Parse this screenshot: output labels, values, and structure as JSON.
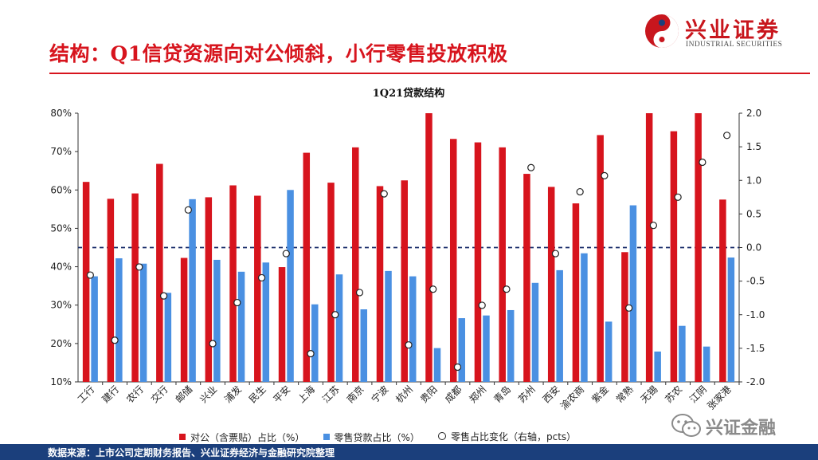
{
  "page": {
    "title": "结构：Q1信贷资源向对公倾斜，小行零售投放积极",
    "logo": {
      "cn": "兴业证券",
      "en": "INDUSTRIAL SECURITIES"
    },
    "source": "数据来源：上市公司定期财务报告、兴业证券经济与金融研究院整理",
    "watermark": "兴证金融",
    "colors": {
      "accent_red": "#d7141d",
      "footer_blue": "#1b3f7c"
    }
  },
  "chart_data": {
    "type": "bar",
    "title": "1Q21贷款结构",
    "categories": [
      "工行",
      "建行",
      "农行",
      "交行",
      "邮储",
      "兴业",
      "浦发",
      "民生",
      "平安",
      "上海",
      "江苏",
      "南京",
      "宁波",
      "杭州",
      "贵阳",
      "成都",
      "郑州",
      "青岛",
      "苏州",
      "西安",
      "渝农商",
      "紫金",
      "常熟",
      "无锡",
      "苏农",
      "江阴",
      "张家港"
    ],
    "series": [
      {
        "name": "对公（含票贴）占比（%）",
        "axis": "left",
        "color": "#d7141d",
        "values": [
          62.1,
          57.7,
          59.1,
          66.8,
          42.3,
          58.1,
          61.2,
          58.5,
          39.9,
          69.7,
          61.9,
          71.1,
          61.0,
          62.5,
          80.0,
          73.3,
          72.4,
          71.1,
          64.2,
          60.8,
          56.5,
          74.3,
          43.8,
          80.0,
          75.3,
          80.0,
          57.5
        ]
      },
      {
        "name": "零售贷款占比（%）",
        "axis": "left",
        "color": "#4a90e2",
        "values": [
          37.5,
          42.2,
          40.8,
          33.2,
          57.6,
          41.8,
          38.7,
          41.1,
          60.0,
          30.2,
          38.0,
          28.9,
          38.9,
          37.5,
          18.8,
          26.6,
          27.3,
          28.7,
          35.8,
          39.1,
          43.5,
          25.7,
          56.0,
          17.9,
          24.6,
          19.2,
          42.4
        ]
      },
      {
        "name": "零售占比变化（右轴，pcts）",
        "axis": "right",
        "type": "scatter",
        "color": "#222222",
        "values": [
          -0.41,
          -1.38,
          -0.29,
          -0.72,
          0.56,
          -1.43,
          -0.82,
          -0.45,
          -0.09,
          -1.58,
          -1.0,
          -0.67,
          0.8,
          -1.45,
          -0.62,
          -1.78,
          -0.86,
          -0.62,
          1.19,
          -0.09,
          0.83,
          1.07,
          -0.9,
          0.33,
          0.75,
          1.27,
          1.67
        ]
      }
    ],
    "y_left": {
      "min": 10,
      "max": 80,
      "step": 10,
      "ticks": [
        "10%",
        "20%",
        "30%",
        "40%",
        "50%",
        "60%",
        "70%",
        "80%"
      ]
    },
    "y_right": {
      "min": -2.0,
      "max": 2.0,
      "step": 0.5,
      "ticks": [
        "-2.0",
        "-1.5",
        "-1.0",
        "-0.5",
        "0.0",
        "0.5",
        "1.0",
        "1.5",
        "2.0"
      ]
    },
    "zero_line": "dashed navy at right-axis 0.0",
    "grid": false,
    "legend_position": "bottom"
  }
}
